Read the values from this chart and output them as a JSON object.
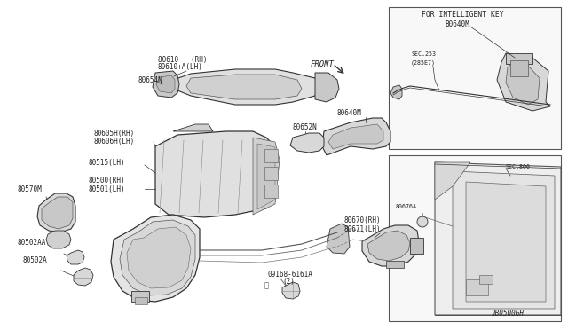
{
  "bg": "#ffffff",
  "line_color": "#333333",
  "text_color": "#222222",
  "fs": 5.5,
  "fs_small": 4.8,
  "diagram_id": "JB0500GH",
  "inset1_label": "FOR INTELLIGENT KEY",
  "inset1_part": "B0640M",
  "inset1_sec": "SEC.253",
  "inset1_sec2": "(285E7)",
  "inset2_sec": "SEC.800",
  "inset2_part": "80676A",
  "front_label": "FRONT",
  "labels": {
    "p80610": "80610   (RH)",
    "p80610a": "80610+A(LH)",
    "p80654n": "80654N",
    "p80605h": "80605H(RH)",
    "p80606h": "80606H(LH)",
    "p80515": "80515(LH)",
    "p80500": "80500(RH)",
    "p80501": "80501(LH)",
    "p80570m": "80570M",
    "p80502aa": "80502AA",
    "p80502a": "80502A",
    "p80640m": "80640M",
    "p80652n": "80652N",
    "p80670": "80670(RH)",
    "p80671": "80671(LH)",
    "p09168": "09168-6161A",
    "p2": "(2)"
  }
}
